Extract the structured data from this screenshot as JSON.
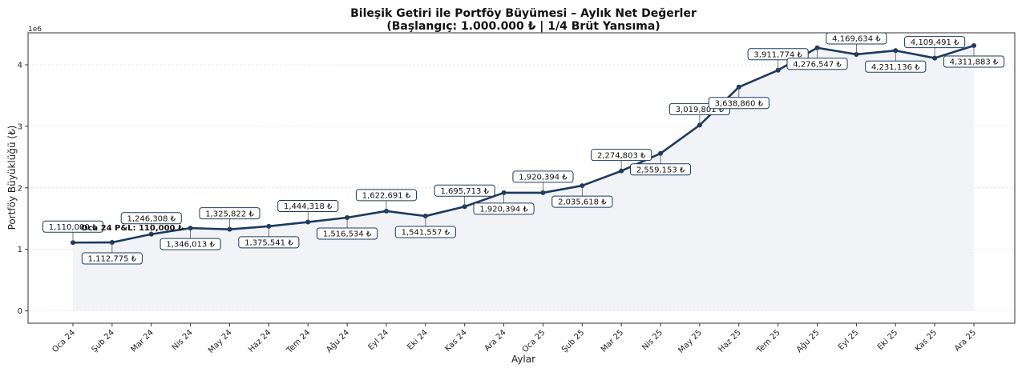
{
  "chart_data": {
    "type": "area",
    "title_line1": "Bileşik Getiri ile Portföy Büyümesi – Aylık Net Değerler",
    "title_line2": "(Başlangıç: 1.000.000 ₺ | 1/4 Brüt Yansıma)",
    "xlabel": "Aylar",
    "ylabel": "Portföy Büyüklüğü (₺)",
    "y_offset_label": "1e6",
    "ylim": [
      -200000,
      4520000
    ],
    "y_ticks": [
      0,
      1000000,
      2000000,
      3000000,
      4000000
    ],
    "y_tick_labels": [
      "0",
      "1",
      "2",
      "3",
      "4"
    ],
    "grid": "horizontal-dotted",
    "categories": [
      "Oca 24",
      "Şub 24",
      "Mar 24",
      "Nis 24",
      "May 24",
      "Haz 24",
      "Tem 24",
      "Ağu 24",
      "Eyl 24",
      "Eki 24",
      "Kas 24",
      "Ara 24",
      "Oca 25",
      "Şub 25",
      "Mar 25",
      "Nis 25",
      "May 25",
      "Haz 25",
      "Tem 25",
      "Ağu 25",
      "Eyl 25",
      "Eki 25",
      "Kas 25",
      "Ara 25"
    ],
    "values": [
      1110000,
      1112775,
      1246308,
      1346013,
      1325822,
      1375541,
      1444318,
      1516534,
      1622691,
      1541557,
      1695713,
      1920394,
      1920394,
      2035618,
      2274803,
      2559153,
      3019801,
      3638860,
      3911774,
      4276547,
      4169634,
      4231136,
      4109491,
      4311883
    ],
    "data_labels": [
      "1,110,000 ₺",
      "1,112,775 ₺",
      "1,246,308 ₺",
      "1,346,013 ₺",
      "1,325,822 ₺",
      "1,375,541 ₺",
      "1,444,318 ₺",
      "1,516,534 ₺",
      "1,622,691 ₺",
      "1,541,557 ₺",
      "1,695,713 ₺",
      "1,920,394 ₺",
      "1,920,394 ₺",
      "2,035,618 ₺",
      "2,274,803 ₺",
      "2,559,153 ₺",
      "3,019,801 ₺",
      "3,638,860 ₺",
      "3,911,774 ₺",
      "4,276,547 ₺",
      "4,169,634 ₺",
      "4,231,136 ₺",
      "4,109,491 ₺",
      "4,311,883 ₺"
    ],
    "label_side": [
      "above",
      "below",
      "above",
      "below",
      "above",
      "below",
      "above",
      "below",
      "above",
      "below",
      "above",
      "below",
      "above",
      "below",
      "above",
      "below",
      "above",
      "below",
      "above",
      "below",
      "above",
      "below",
      "above",
      "below"
    ],
    "annotation": "Oca 24 P&L: 110,000 ₺",
    "colors": {
      "line": "#1c3a5e",
      "fill": "#f1f3f6",
      "label_border": "#1c3a5e",
      "grid": "#d9d9d9"
    }
  }
}
